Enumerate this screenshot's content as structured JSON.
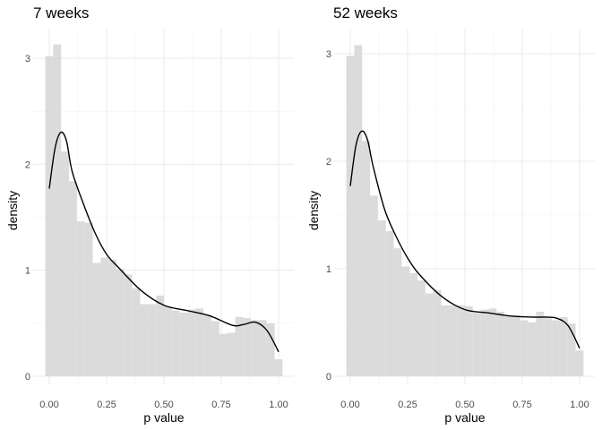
{
  "chart_data": [
    {
      "type": "histogram",
      "title": "7 weeks",
      "xlabel": "p value",
      "ylabel": "density",
      "xlim": [
        0,
        1
      ],
      "ylim": [
        0,
        3.15
      ],
      "x_ticks": [
        "0.00",
        "0.25",
        "0.50",
        "0.75",
        "1.00"
      ],
      "y_ticks": [
        "0",
        "1",
        "2",
        "3"
      ],
      "grid": true,
      "bar_color": "#d9d9d9",
      "line_color": "#000000",
      "bins": {
        "centers": [
          0.0,
          0.0345,
          0.069,
          0.1034,
          0.1379,
          0.1724,
          0.2069,
          0.2414,
          0.2759,
          0.3103,
          0.3448,
          0.3793,
          0.4138,
          0.4483,
          0.4828,
          0.5172,
          0.5517,
          0.5862,
          0.6207,
          0.6552,
          0.6897,
          0.7241,
          0.7586,
          0.7931,
          0.8276,
          0.8621,
          0.8966,
          0.931,
          0.9655,
          1.0
        ],
        "density": [
          3.02,
          3.13,
          2.12,
          1.84,
          1.46,
          1.45,
          1.07,
          1.12,
          1.1,
          1.01,
          0.96,
          0.83,
          0.68,
          0.68,
          0.76,
          0.66,
          0.62,
          0.6,
          0.63,
          0.64,
          0.58,
          0.52,
          0.4,
          0.41,
          0.56,
          0.55,
          0.53,
          0.53,
          0.5,
          0.16
        ]
      },
      "density_curve": {
        "x": [
          0.0,
          0.025,
          0.05,
          0.075,
          0.1,
          0.15,
          0.2,
          0.25,
          0.3,
          0.4,
          0.5,
          0.6,
          0.7,
          0.8,
          0.85,
          0.9,
          0.95,
          1.0
        ],
        "y": [
          1.77,
          2.15,
          2.3,
          2.22,
          1.93,
          1.62,
          1.35,
          1.15,
          1.03,
          0.81,
          0.67,
          0.62,
          0.57,
          0.48,
          0.49,
          0.51,
          0.43,
          0.23
        ]
      }
    },
    {
      "type": "histogram",
      "title": "52 weeks",
      "xlabel": "p value",
      "ylabel": "density",
      "xlim": [
        0,
        1
      ],
      "ylim": [
        0,
        3.1
      ],
      "x_ticks": [
        "0.00",
        "0.25",
        "0.50",
        "0.75",
        "1.00"
      ],
      "y_ticks": [
        "0",
        "1",
        "2",
        "3"
      ],
      "grid": true,
      "bar_color": "#d9d9d9",
      "line_color": "#000000",
      "bins": {
        "centers": [
          0.0,
          0.0345,
          0.069,
          0.1034,
          0.1379,
          0.1724,
          0.2069,
          0.2414,
          0.2759,
          0.3103,
          0.3448,
          0.3793,
          0.4138,
          0.4483,
          0.4828,
          0.5172,
          0.5517,
          0.5862,
          0.6207,
          0.6552,
          0.6897,
          0.7241,
          0.7586,
          0.7931,
          0.8276,
          0.8621,
          0.8966,
          0.931,
          0.9655,
          1.0
        ],
        "density": [
          2.98,
          3.08,
          2.19,
          1.68,
          1.45,
          1.35,
          1.19,
          1.02,
          0.96,
          0.89,
          0.77,
          0.8,
          0.66,
          0.66,
          0.66,
          0.65,
          0.59,
          0.62,
          0.63,
          0.6,
          0.56,
          0.57,
          0.52,
          0.5,
          0.6,
          0.54,
          0.52,
          0.55,
          0.49,
          0.24
        ]
      },
      "density_curve": {
        "x": [
          0.0,
          0.025,
          0.05,
          0.075,
          0.1,
          0.15,
          0.2,
          0.25,
          0.3,
          0.4,
          0.5,
          0.6,
          0.7,
          0.8,
          0.85,
          0.9,
          0.95,
          1.0
        ],
        "y": [
          1.77,
          2.15,
          2.28,
          2.2,
          1.95,
          1.55,
          1.3,
          1.1,
          0.95,
          0.74,
          0.62,
          0.59,
          0.56,
          0.55,
          0.55,
          0.54,
          0.47,
          0.26
        ]
      }
    }
  ]
}
